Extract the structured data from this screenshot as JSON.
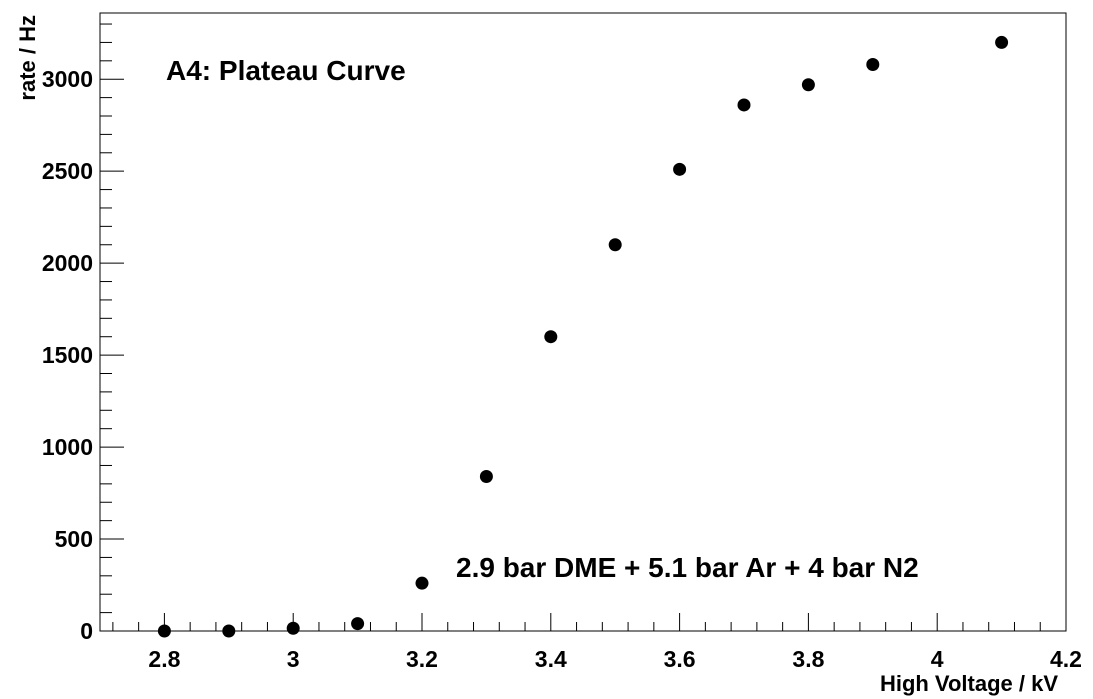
{
  "chart_data": {
    "type": "scatter",
    "title": "A4: Plateau Curve",
    "annotation": "2.9 bar DME + 5.1 bar Ar + 4 bar N2",
    "xlabel": "High Voltage / kV",
    "ylabel": "rate / Hz",
    "xlim": [
      2.7,
      4.2
    ],
    "ylim": [
      0,
      3360
    ],
    "x_ticks": [
      "2.8",
      "3",
      "3.2",
      "3.4",
      "3.6",
      "3.8",
      "4",
      "4.2"
    ],
    "y_ticks": [
      "0",
      "500",
      "1000",
      "1500",
      "2000",
      "2500",
      "3000"
    ],
    "grid": false,
    "marker_color": "#000000",
    "series": [
      {
        "x": [
          2.8,
          2.9,
          3.0,
          3.1,
          3.2,
          3.3,
          3.4,
          3.5,
          3.6,
          3.7,
          3.8,
          3.9,
          4.1
        ],
        "y": [
          0,
          0,
          15,
          40,
          260,
          840,
          1600,
          2100,
          2510,
          2860,
          2970,
          3080,
          3200
        ]
      }
    ]
  }
}
